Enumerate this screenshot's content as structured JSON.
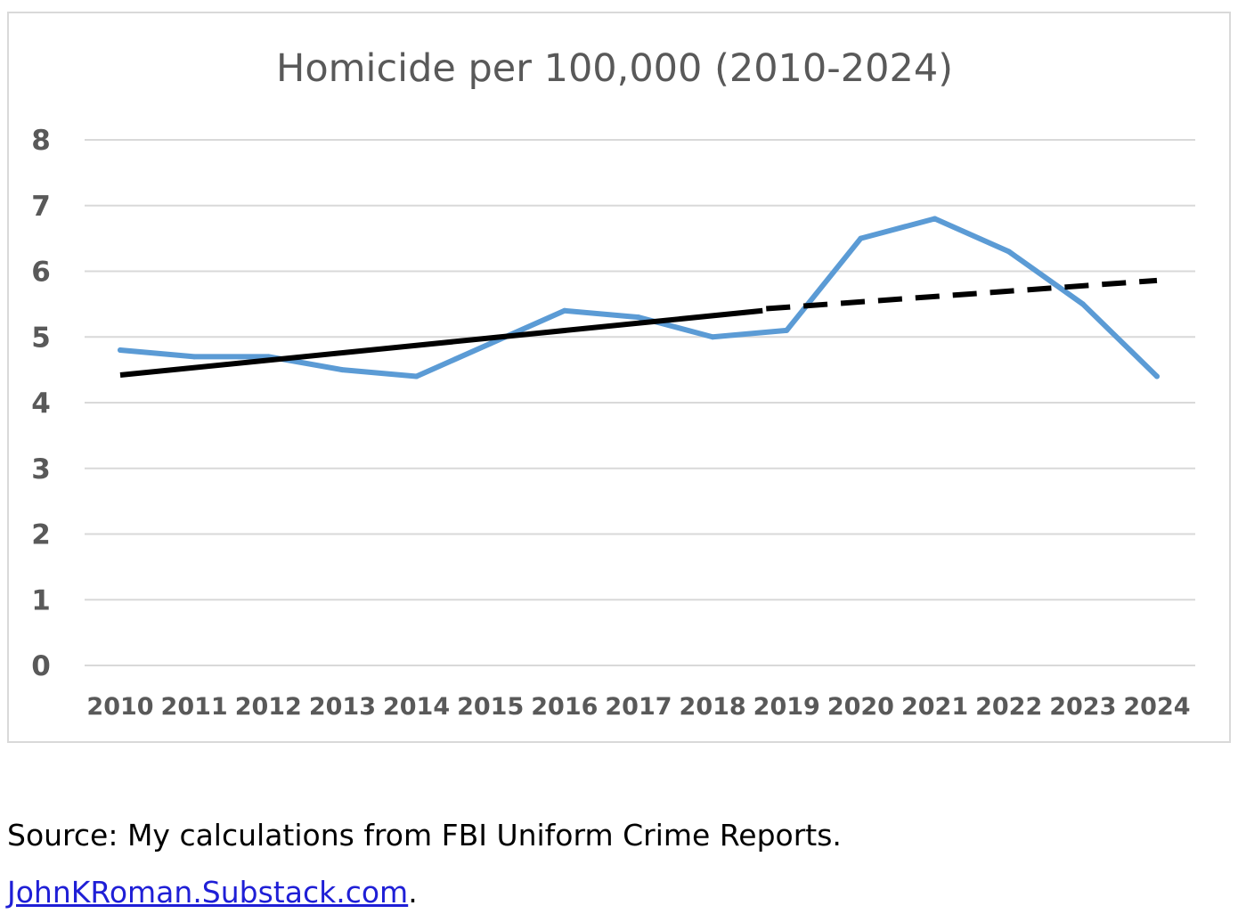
{
  "chart_data": {
    "type": "line",
    "title": "Homicide per 100,000 (2010-2024)",
    "xlabel": "",
    "ylabel": "",
    "categories": [
      "2010",
      "2011",
      "2012",
      "2013",
      "2014",
      "2015",
      "2016",
      "2017",
      "2018",
      "2019",
      "2020",
      "2021",
      "2022",
      "2023",
      "2024"
    ],
    "ylim": [
      0,
      8
    ],
    "yticks": [
      "0",
      "1",
      "2",
      "3",
      "4",
      "5",
      "6",
      "7",
      "8"
    ],
    "grid": true,
    "legend": "none",
    "series": [
      {
        "color": "#5b9bd5",
        "style": "solid",
        "values": [
          4.8,
          4.7,
          4.7,
          4.5,
          4.4,
          4.9,
          5.4,
          5.3,
          5.0,
          5.1,
          6.5,
          6.8,
          6.3,
          5.5,
          4.4
        ]
      }
    ],
    "trend": {
      "color": "#000000",
      "start": {
        "x": "2010",
        "y": 4.42
      },
      "break": {
        "x": "2019",
        "y": 5.43
      },
      "end": {
        "x": "2024",
        "y": 5.86
      },
      "segments": [
        "solid",
        "dashed"
      ]
    }
  },
  "caption": {
    "source": "Source: My calculations from FBI Uniform Crime Reports.",
    "link": "JohnKRoman.Substack.com",
    "link_suffix": "."
  }
}
